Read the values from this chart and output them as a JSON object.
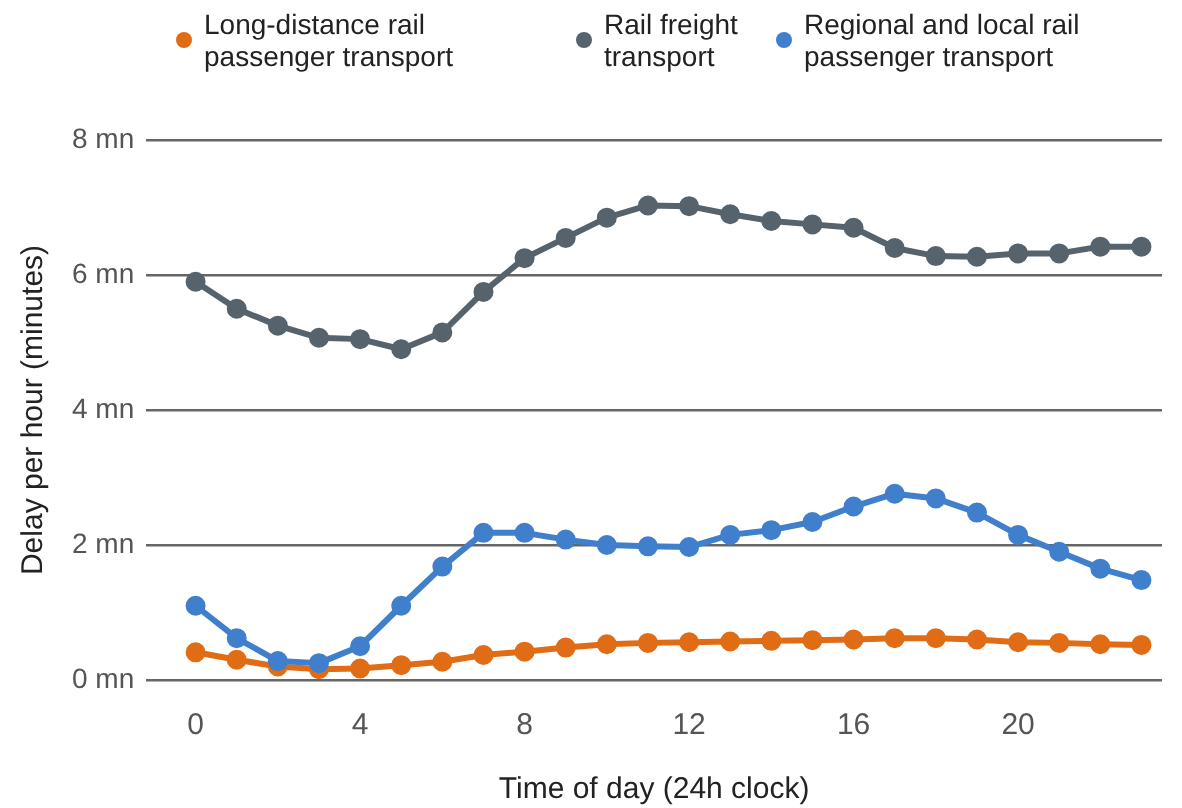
{
  "chart_data": {
    "type": "line",
    "xlabel": "Time of day (24h clock)",
    "ylabel": "Delay per hour (minutes)",
    "x": [
      0,
      1,
      2,
      3,
      4,
      5,
      6,
      7,
      8,
      9,
      10,
      11,
      12,
      13,
      14,
      15,
      16,
      17,
      18,
      19,
      20,
      21,
      22,
      23
    ],
    "series": [
      {
        "name": "Long-distance rail passenger transport",
        "color": "#e06c16",
        "values": [
          0.41,
          0.3,
          0.2,
          0.16,
          0.17,
          0.22,
          0.27,
          0.37,
          0.42,
          0.48,
          0.53,
          0.55,
          0.56,
          0.57,
          0.58,
          0.59,
          0.6,
          0.62,
          0.62,
          0.6,
          0.56,
          0.55,
          0.53,
          0.52
        ]
      },
      {
        "name": "Rail freight transport",
        "color": "#56636d",
        "values": [
          5.9,
          5.5,
          5.25,
          5.07,
          5.05,
          4.9,
          5.15,
          5.75,
          6.25,
          6.55,
          6.85,
          7.03,
          7.02,
          6.9,
          6.8,
          6.75,
          6.7,
          6.4,
          6.28,
          6.27,
          6.32,
          6.32,
          6.42,
          6.42
        ]
      },
      {
        "name": "Regional and local rail passenger transport",
        "color": "#3f7fcc",
        "values": [
          1.1,
          0.62,
          0.28,
          0.25,
          0.5,
          1.1,
          1.68,
          2.18,
          2.18,
          2.08,
          2.0,
          1.98,
          1.97,
          2.15,
          2.22,
          2.34,
          2.57,
          2.76,
          2.69,
          2.48,
          2.15,
          1.9,
          1.65,
          1.48
        ]
      }
    ],
    "xlim": [
      -1.2,
      23.5
    ],
    "xticks": [
      0,
      4,
      8,
      12,
      16,
      20
    ],
    "ylim": [
      0,
      8
    ],
    "yticks": [
      {
        "value": 0,
        "label": "0 mn"
      },
      {
        "value": 2,
        "label": "2 mn"
      },
      {
        "value": 4,
        "label": "4 mn"
      },
      {
        "value": 6,
        "label": "6 mn"
      },
      {
        "value": 8,
        "label": "8 mn"
      }
    ],
    "grid": "y",
    "legend": "top",
    "marker": "circle",
    "line_style": "solid"
  }
}
